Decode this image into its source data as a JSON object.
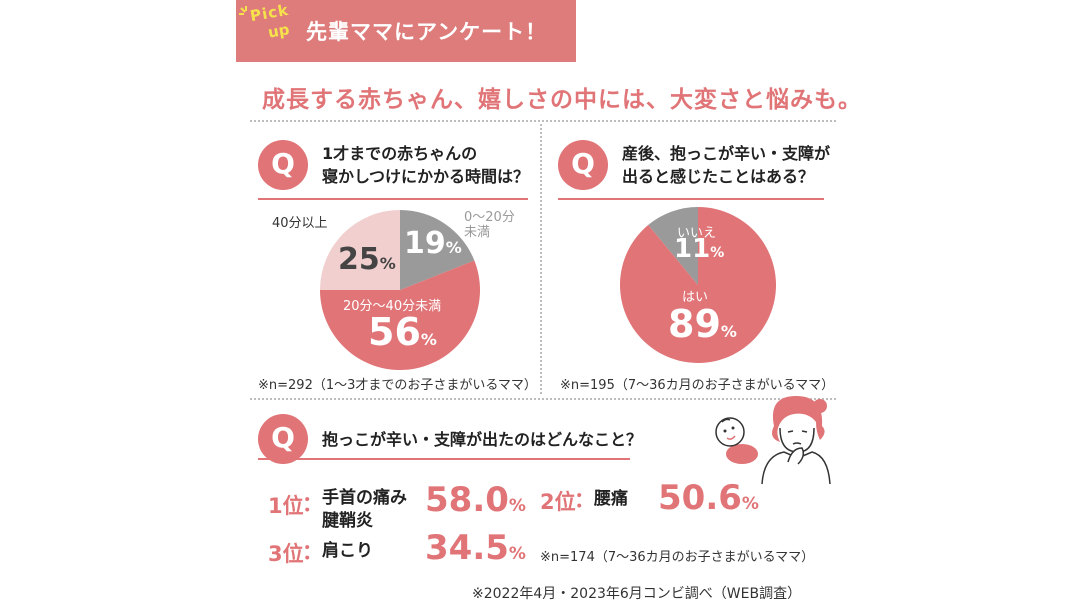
{
  "header": {
    "pickup_line1": "Pick",
    "pickup_line2": "up",
    "title": "先輩ママにアンケート！"
  },
  "subtitle": "成長する赤ちゃん、嬉しさの中には、大変さと悩みも。",
  "q_mark": "Q",
  "colors": {
    "accent": "#e07477",
    "grey": "#9a9a9a",
    "light_pink": "#f1cfcf",
    "header": "#de7b7b"
  },
  "q1": {
    "line1": "1才までの赤ちゃんの",
    "line2": "寝かしつけにかかる時間は？",
    "note": "※n=292（1〜3才までのお子さまがいるママ）",
    "labels": {
      "a": "0〜20分",
      "a2": "未満",
      "b": "20分〜40分未満",
      "c": "40分以上"
    },
    "pct": {
      "a": "19",
      "b": "56",
      "c": "25"
    }
  },
  "q2": {
    "line1": "産後、抱っこが辛い・支障が",
    "line2": "出ると感じたことはある？",
    "note": "※n=195（7〜36カ月のお子さまがいるママ）",
    "labels": {
      "yes": "はい",
      "no": "いいえ"
    },
    "pct": {
      "yes": "89",
      "no": "11"
    }
  },
  "q3": {
    "question": "抱っこが辛い・支障が出たのはどんなこと？",
    "note": "※n=174（7〜36カ月のお子さまがいるママ）",
    "ranks": [
      {
        "rank": "1位",
        "item_line1": "手首の痛み",
        "item_line2": "腱鞘炎",
        "value": "58.0"
      },
      {
        "rank": "2位",
        "item_line1": "腰痛",
        "item_line2": "",
        "value": "50.6"
      },
      {
        "rank": "3位",
        "item_line1": "肩こり",
        "item_line2": "",
        "value": "34.5"
      }
    ]
  },
  "unit": "%",
  "colon": "：",
  "footnote": "※2022年4月・2023年6月コンビ調べ（WEB調査）",
  "icons": {
    "spark": "spark-icon",
    "mother": "worried-mother-illustration",
    "baby": "baby-illustration"
  },
  "chart_data": [
    {
      "type": "pie",
      "title": "1才までの赤ちゃんの寝かしつけにかかる時間は？",
      "categories": [
        "0〜20分未満",
        "20分〜40分未満",
        "40分以上"
      ],
      "values": [
        19,
        56,
        25
      ],
      "colors": [
        "#9a9a9a",
        "#e07477",
        "#f1cfcf"
      ]
    },
    {
      "type": "pie",
      "title": "産後、抱っこが辛い・支障が出ると感じたことはある？",
      "categories": [
        "はい",
        "いいえ"
      ],
      "values": [
        89,
        11
      ],
      "colors": [
        "#e07477",
        "#9a9a9a"
      ]
    },
    {
      "type": "bar",
      "title": "抱っこが辛い・支障が出たのはどんなこと？",
      "categories": [
        "手首の痛み 腱鞘炎",
        "腰痛",
        "肩こり"
      ],
      "values": [
        58.0,
        50.6,
        34.5
      ]
    }
  ]
}
